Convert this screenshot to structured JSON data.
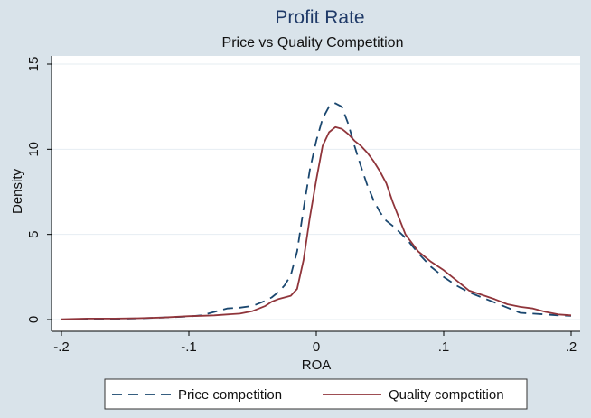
{
  "chart_data": {
    "type": "line",
    "title": "Profit Rate",
    "subtitle": "Price vs Quality Competition",
    "xlabel": "ROA",
    "ylabel": "Density",
    "xlim": [
      -0.2,
      0.2
    ],
    "ylim": [
      0,
      15
    ],
    "x_ticks": [
      -0.2,
      -0.1,
      0,
      0.1,
      0.2
    ],
    "x_tick_labels": [
      "-.2",
      "-.1",
      "0",
      ".1",
      ".2"
    ],
    "y_ticks": [
      0,
      5,
      10,
      15
    ],
    "y_tick_labels": [
      "0",
      "5",
      "10",
      "15"
    ],
    "grid": true,
    "legend_position": "bottom",
    "colors": {
      "background": "#d9e3ea",
      "plot_background": "#ffffff",
      "title": "#1f3a68",
      "price": "#1a476f",
      "quality": "#90353b",
      "grid": "#e6edf2"
    },
    "series": [
      {
        "name": "Price competition",
        "style": "dashed",
        "x": [
          -0.2,
          -0.18,
          -0.16,
          -0.14,
          -0.12,
          -0.1,
          -0.09,
          -0.08,
          -0.07,
          -0.06,
          -0.05,
          -0.04,
          -0.035,
          -0.03,
          -0.025,
          -0.02,
          -0.015,
          -0.01,
          -0.005,
          0,
          0.005,
          0.01,
          0.015,
          0.02,
          0.025,
          0.03,
          0.035,
          0.04,
          0.045,
          0.05,
          0.055,
          0.06,
          0.07,
          0.08,
          0.09,
          0.1,
          0.11,
          0.12,
          0.13,
          0.14,
          0.15,
          0.16,
          0.17,
          0.18,
          0.19,
          0.2
        ],
        "y": [
          0.0,
          0.02,
          0.04,
          0.07,
          0.12,
          0.18,
          0.25,
          0.45,
          0.65,
          0.7,
          0.8,
          1.1,
          1.3,
          1.6,
          2.0,
          2.6,
          4.0,
          6.5,
          8.8,
          10.5,
          11.8,
          12.5,
          12.7,
          12.5,
          11.5,
          10.2,
          9.0,
          7.9,
          7.0,
          6.3,
          5.8,
          5.5,
          4.8,
          3.9,
          3.1,
          2.5,
          2.0,
          1.6,
          1.3,
          1.0,
          0.7,
          0.4,
          0.35,
          0.3,
          0.25,
          0.22
        ]
      },
      {
        "name": "Quality competition",
        "style": "solid",
        "x": [
          -0.2,
          -0.18,
          -0.16,
          -0.14,
          -0.12,
          -0.1,
          -0.09,
          -0.08,
          -0.07,
          -0.06,
          -0.05,
          -0.04,
          -0.035,
          -0.03,
          -0.025,
          -0.02,
          -0.015,
          -0.01,
          -0.005,
          0,
          0.005,
          0.01,
          0.015,
          0.02,
          0.025,
          0.03,
          0.035,
          0.04,
          0.045,
          0.05,
          0.055,
          0.06,
          0.07,
          0.08,
          0.09,
          0.1,
          0.11,
          0.12,
          0.13,
          0.14,
          0.15,
          0.16,
          0.17,
          0.18,
          0.19,
          0.2
        ],
        "y": [
          0.02,
          0.06,
          0.06,
          0.08,
          0.12,
          0.2,
          0.22,
          0.25,
          0.3,
          0.35,
          0.5,
          0.8,
          1.05,
          1.2,
          1.3,
          1.4,
          1.8,
          3.5,
          6.0,
          8.2,
          10.2,
          11.0,
          11.3,
          11.2,
          10.9,
          10.5,
          10.2,
          9.8,
          9.3,
          8.7,
          8.0,
          6.9,
          5.0,
          4.0,
          3.4,
          2.9,
          2.3,
          1.7,
          1.45,
          1.2,
          0.9,
          0.75,
          0.65,
          0.45,
          0.3,
          0.25
        ]
      }
    ]
  }
}
